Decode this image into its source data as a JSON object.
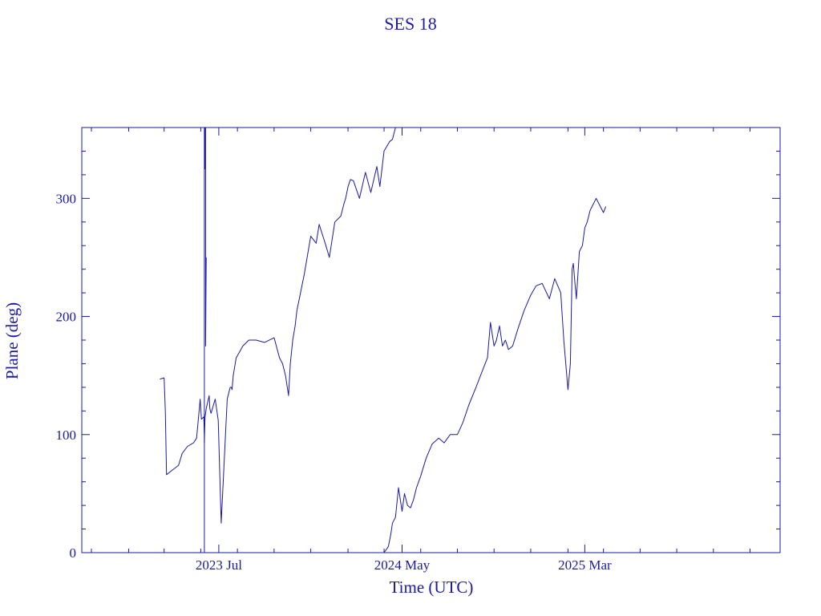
{
  "chart_data": {
    "type": "line",
    "title": "SES 18",
    "xlabel": "Time (UTC)",
    "ylabel": "Plane (deg)",
    "ylim": [
      0,
      360
    ],
    "xlim": [
      "2022-11-15",
      "2026-01-20"
    ],
    "grid": false,
    "color": "#1a1aa6",
    "yticks": [
      0,
      100,
      200,
      300
    ],
    "ytick_labels": [
      "0",
      "100",
      "200",
      "300"
    ],
    "xticks": [
      "2023-07-01",
      "2024-05-01",
      "2025-03-01"
    ],
    "xtick_labels": [
      "2023 Jul",
      "2024 May",
      "2025 Mar"
    ],
    "series": [
      {
        "x": [
          "2023-03-25",
          "2023-04-01",
          "2023-04-03",
          "2023-04-05",
          "2023-04-15",
          "2023-04-25",
          "2023-05-01",
          "2023-05-10",
          "2023-05-20",
          "2023-05-25",
          "2023-05-31",
          "2023-06-02",
          "2023-06-06",
          "2023-06-07",
          "2023-06-07",
          "2023-06-08",
          "2023-06-09",
          "2023-06-10",
          "2023-06-15",
          "2023-06-16",
          "2023-06-18",
          "2023-06-25",
          "2023-06-30",
          "2023-07-05",
          "2023-07-15",
          "2023-07-20",
          "2023-07-22",
          "2023-07-23",
          "2023-07-25",
          "2023-07-30",
          "2023-08-10",
          "2023-08-20",
          "2023-09-01",
          "2023-09-15",
          "2023-10-01",
          "2023-10-10",
          "2023-10-15",
          "2023-10-20",
          "2023-10-25",
          "2023-10-28",
          "2023-11-01",
          "2023-11-05",
          "2023-11-08",
          "2023-11-12",
          "2023-11-20",
          "2023-12-01",
          "2023-12-10",
          "2023-12-15",
          "2023-12-20",
          "2023-12-25",
          "2024-01-01",
          "2024-01-10",
          "2024-01-20",
          "2024-01-25",
          "2024-01-28",
          "2024-02-01",
          "2024-02-05",
          "2024-02-10",
          "2024-02-20",
          "2024-03-01",
          "2024-03-10",
          "2024-03-20",
          "2024-03-25",
          "2024-04-01",
          "2024-04-10",
          "2024-04-15",
          "2024-04-20",
          "2024-04-25",
          "2024-04-28",
          "2024-05-01"
        ],
        "values": [
          147,
          148,
          120,
          66,
          70,
          74,
          84,
          90,
          93,
          97,
          130,
          113,
          115,
          100,
          93,
          115,
          118,
          122,
          133,
          122,
          118,
          130,
          112,
          25,
          130,
          140,
          140,
          138,
          150,
          165,
          175,
          180,
          180,
          178,
          182,
          165,
          160,
          150,
          133,
          160,
          180,
          192,
          205,
          215,
          235,
          268,
          262,
          278,
          270,
          262,
          250,
          280,
          285,
          295,
          300,
          310,
          316,
          315,
          300,
          322,
          305,
          327,
          310,
          340,
          348,
          350,
          360,
          360,
          360,
          360
        ]
      },
      {
        "x": [
          "2024-04-01",
          "2024-04-08",
          "2024-04-12",
          "2024-04-15",
          "2024-04-20",
          "2024-04-25",
          "2024-05-01",
          "2024-05-05",
          "2024-05-10",
          "2024-05-15",
          "2024-05-20",
          "2024-05-25",
          "2024-06-01",
          "2024-06-10",
          "2024-06-20",
          "2024-07-01",
          "2024-07-10",
          "2024-07-20",
          "2024-08-01",
          "2024-08-10",
          "2024-08-20",
          "2024-09-01",
          "2024-09-10",
          "2024-09-20",
          "2024-09-25",
          "2024-10-01",
          "2024-10-05",
          "2024-10-10",
          "2024-10-15",
          "2024-10-20",
          "2024-10-25",
          "2024-11-01",
          "2024-11-10",
          "2024-11-20",
          "2024-12-01",
          "2024-12-10",
          "2024-12-20",
          "2025-01-01",
          "2025-01-10",
          "2025-01-20",
          "2025-01-25",
          "2025-02-01",
          "2025-02-05",
          "2025-02-08",
          "2025-02-10",
          "2025-02-12",
          "2025-02-15",
          "2025-02-20",
          "2025-02-25",
          "2025-03-01",
          "2025-03-05",
          "2025-03-10",
          "2025-03-20",
          "2025-04-01",
          "2025-04-05"
        ],
        "values": [
          0,
          5,
          15,
          25,
          30,
          55,
          35,
          50,
          40,
          38,
          45,
          55,
          65,
          80,
          92,
          97,
          93,
          100,
          100,
          110,
          125,
          140,
          152,
          165,
          195,
          175,
          180,
          192,
          175,
          180,
          172,
          175,
          190,
          205,
          218,
          226,
          228,
          215,
          232,
          220,
          180,
          138,
          160,
          240,
          245,
          232,
          215,
          255,
          260,
          275,
          280,
          290,
          300,
          288,
          293
        ]
      },
      {
        "x": [
          "2023-06-07",
          "2023-06-07",
          "2023-06-08",
          "2023-06-08",
          "2023-06-09",
          "2023-06-09",
          "2023-06-10"
        ],
        "values": [
          0,
          360,
          360,
          325,
          360,
          175,
          250
        ]
      }
    ]
  }
}
